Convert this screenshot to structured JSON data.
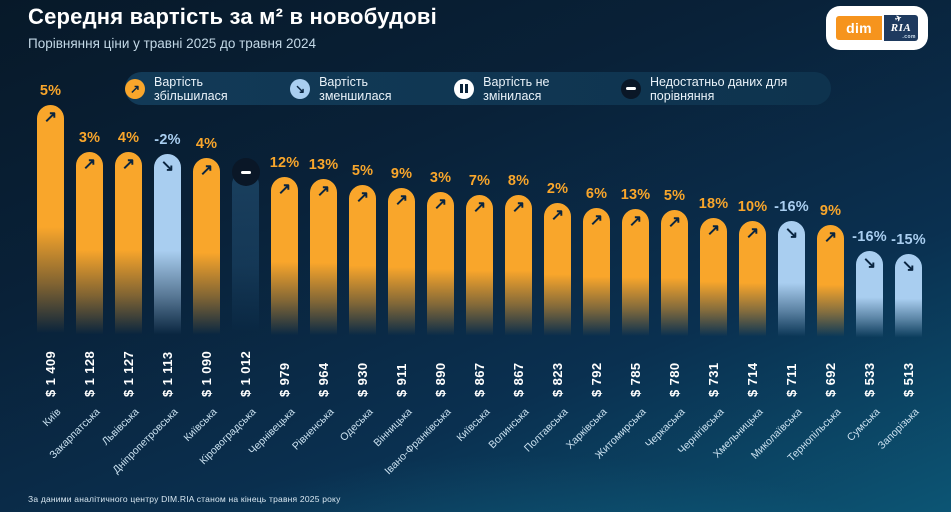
{
  "header": {
    "title": "Середня вартість за м² в новобудові",
    "subtitle": "Порівняння ціни у травні 2025 до травня 2024",
    "logo": {
      "dim": "dim",
      "ria": "RIA",
      "com": ".com",
      "plane_icon": "✈"
    }
  },
  "legend": {
    "items": [
      {
        "label": "Вартість збільшилася",
        "icon": "arrow-up-right",
        "circle_color": "#F9A62B"
      },
      {
        "label": "Вартість зменшилася",
        "icon": "arrow-down-right",
        "circle_color": "#A9CEF0"
      },
      {
        "label": "Вартість не змінилася",
        "icon": "pause",
        "circle_color": "#FFFFFF"
      },
      {
        "label": "Недостатньо даних для порівняння",
        "icon": "minus",
        "circle_color": "#0A1727"
      }
    ]
  },
  "footer": {
    "source": "За даними аналітичного центру DIM.RIA станом на кінець травня 2025 року"
  },
  "chart_data": {
    "type": "bar",
    "title": "Середня вартість за м² в новобудові",
    "subtitle": "Порівняння ціни у травні 2025 до травня 2024",
    "unit": "USD за м²",
    "currency_prefix": "$",
    "categories": [
      "Київ",
      "Закарпатська",
      "Львівська",
      "Дніпропетровська",
      "Київська",
      "Кіровоградська",
      "Чернівецька",
      "Рівненська",
      "Одеська",
      "Вінницька",
      "Івано-Франківська",
      "Київська",
      "Волинська",
      "Полтавська",
      "Харківська",
      "Житомирська",
      "Черкаська",
      "Чернігівська",
      "Хмельницька",
      "Миколаївська",
      "Тернопільська",
      "Сумська",
      "Запорізька"
    ],
    "values": [
      1409,
      1128,
      1127,
      1113,
      1090,
      1012,
      979,
      964,
      930,
      911,
      890,
      867,
      867,
      823,
      792,
      785,
      780,
      731,
      714,
      711,
      692,
      533,
      513
    ],
    "change_pct": [
      5,
      3,
      4,
      -2,
      4,
      null,
      12,
      13,
      5,
      9,
      3,
      7,
      8,
      2,
      6,
      13,
      5,
      18,
      10,
      -16,
      9,
      -16,
      -15
    ],
    "status": [
      "increase",
      "increase",
      "increase",
      "decrease",
      "increase",
      "no-data",
      "increase",
      "increase",
      "increase",
      "increase",
      "increase",
      "increase",
      "increase",
      "increase",
      "increase",
      "increase",
      "increase",
      "increase",
      "increase",
      "decrease",
      "increase",
      "decrease",
      "decrease"
    ],
    "legend_position": "top",
    "grid": false,
    "colors": {
      "increase": "#F9A62B",
      "decrease": "#A9CEF0",
      "no_data_bar": "#2A5E86",
      "no_data_circle": "#0A1727",
      "arrow": "#0A2540",
      "value_text": "#FFFFFF",
      "region_text": "#C9E0EF"
    }
  }
}
